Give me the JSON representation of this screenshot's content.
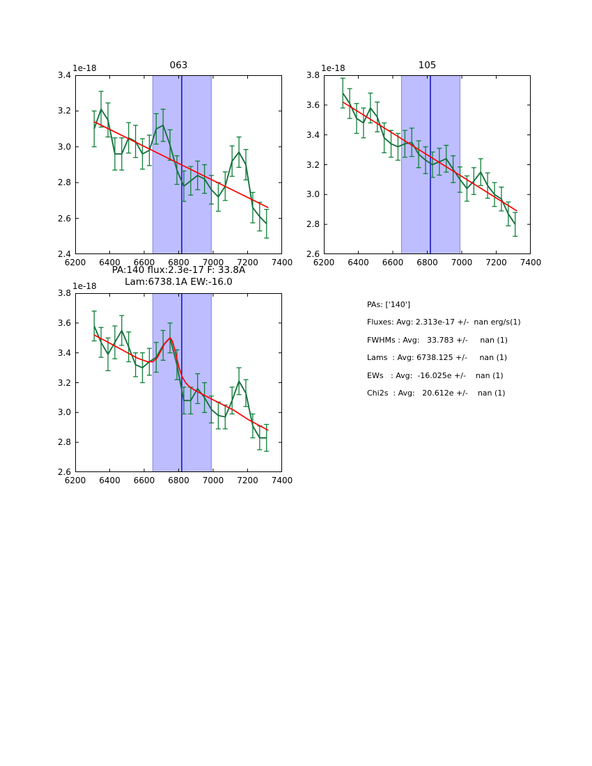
{
  "figure": {
    "background": "#ffffff"
  },
  "colors": {
    "spectrum_green": "#17713f",
    "errorbar_green": "#0e8038",
    "fit_red": "#ff0000",
    "band_fill": "rgba(0,0,255,0.26)",
    "band_edge": "rgba(64,64,208,0.55)",
    "vline_blue": "#0000bb",
    "axis_black": "#000000"
  },
  "stats": {
    "lines": [
      "PAs: ['140']",
      "Fluxes: Avg: 2.313e-17 +/-  nan erg/s(1)",
      "FWHMs : Avg:   33.783 +/-     nan (1)",
      "Lams  : Avg: 6738.125 +/-     nan (1)",
      "EWs   : Avg:  -16.025e +/-    nan (1)",
      "Chi2s  : Avg:   20.612e +/-    nan (1)"
    ]
  },
  "chart_data": [
    {
      "type": "line",
      "title": "063",
      "offset_label": "1e-18",
      "xlim": [
        6200,
        7400
      ],
      "ylim": [
        2.4,
        3.4
      ],
      "xticks": [
        6200,
        6400,
        6600,
        6800,
        7000,
        7200,
        7400
      ],
      "xtick_labels": [
        "6200",
        "6400",
        "6600",
        "6800",
        "7000",
        "7200",
        "7400"
      ],
      "yticks": [
        2.4,
        2.6,
        2.8,
        3.0,
        3.2,
        3.4
      ],
      "ytick_labels": [
        "2.4",
        "2.6",
        "2.8",
        "3.0",
        "3.2",
        "3.4"
      ],
      "band_x": [
        6650,
        6990
      ],
      "vline_x": 6818,
      "grid": false,
      "series": [
        {
          "name": "spectrum",
          "x": [
            6310,
            6350,
            6390,
            6430,
            6470,
            6510,
            6550,
            6590,
            6630,
            6670,
            6710,
            6750,
            6790,
            6830,
            6870,
            6910,
            6950,
            6990,
            7030,
            7070,
            7110,
            7150,
            7190,
            7230,
            7270,
            7310
          ],
          "y": [
            3.1,
            3.21,
            3.15,
            2.96,
            2.96,
            3.05,
            3.03,
            2.96,
            2.98,
            3.1,
            3.12,
            3.01,
            2.87,
            2.78,
            2.81,
            2.84,
            2.82,
            2.76,
            2.72,
            2.78,
            2.92,
            2.97,
            2.9,
            2.66,
            2.61,
            2.57
          ],
          "yerr": [
            0.1,
            0.1,
            0.095,
            0.09,
            0.09,
            0.085,
            0.09,
            0.085,
            0.085,
            0.085,
            0.09,
            0.085,
            0.08,
            0.085,
            0.08,
            0.08,
            0.08,
            0.08,
            0.08,
            0.08,
            0.085,
            0.085,
            0.085,
            0.085,
            0.08,
            0.08
          ]
        },
        {
          "name": "linear-fit",
          "x": [
            6310,
            7320
          ],
          "y": [
            3.14,
            2.66
          ]
        }
      ]
    },
    {
      "type": "line",
      "title": "105",
      "offset_label": "1e-18",
      "xlim": [
        6200,
        7400
      ],
      "ylim": [
        2.6,
        3.8
      ],
      "xticks": [
        6200,
        6400,
        6600,
        6800,
        7000,
        7200,
        7400
      ],
      "xtick_labels": [
        "6200",
        "6400",
        "6600",
        "6800",
        "7000",
        "7200",
        "7400"
      ],
      "yticks": [
        2.6,
        2.8,
        3.0,
        3.2,
        3.4,
        3.6,
        3.8
      ],
      "ytick_labels": [
        "2.6",
        "2.8",
        "3.0",
        "3.2",
        "3.4",
        "3.6",
        "3.8"
      ],
      "band_x": [
        6650,
        6990
      ],
      "vline_x": 6818,
      "grid": false,
      "series": [
        {
          "name": "spectrum",
          "x": [
            6310,
            6350,
            6390,
            6430,
            6470,
            6510,
            6550,
            6590,
            6630,
            6670,
            6710,
            6750,
            6790,
            6830,
            6870,
            6910,
            6950,
            6990,
            7030,
            7070,
            7110,
            7150,
            7190,
            7230,
            7270,
            7310
          ],
          "y": [
            3.68,
            3.61,
            3.51,
            3.48,
            3.58,
            3.52,
            3.38,
            3.34,
            3.32,
            3.34,
            3.35,
            3.27,
            3.23,
            3.2,
            3.22,
            3.24,
            3.17,
            3.1,
            3.04,
            3.09,
            3.15,
            3.06,
            3.0,
            2.97,
            2.87,
            2.8
          ],
          "yerr": [
            0.1,
            0.1,
            0.1,
            0.1,
            0.1,
            0.1,
            0.1,
            0.09,
            0.09,
            0.09,
            0.095,
            0.09,
            0.09,
            0.085,
            0.09,
            0.09,
            0.09,
            0.085,
            0.085,
            0.09,
            0.09,
            0.085,
            0.08,
            0.08,
            0.08,
            0.08
          ]
        },
        {
          "name": "linear-fit",
          "x": [
            6310,
            7320
          ],
          "y": [
            3.62,
            2.89
          ]
        }
      ]
    },
    {
      "type": "line",
      "title": "PA:140 flux:2.3e-17 F: 33.8A Lam:6738.1A EW:-16.0",
      "title_lines": [
        "PA:140 flux:2.3e-17 F: 33.8A",
        "Lam:6738.1A EW:-16.0"
      ],
      "offset_label": "1e-18",
      "xlim": [
        6200,
        7400
      ],
      "ylim": [
        2.6,
        3.8
      ],
      "xticks": [
        6200,
        6400,
        6600,
        6800,
        7000,
        7200,
        7400
      ],
      "xtick_labels": [
        "6200",
        "6400",
        "6600",
        "6800",
        "7000",
        "7200",
        "7400"
      ],
      "yticks": [
        2.6,
        2.8,
        3.0,
        3.2,
        3.4,
        3.6,
        3.8
      ],
      "ytick_labels": [
        "2.6",
        "2.8",
        "3.0",
        "3.2",
        "3.4",
        "3.6",
        "3.8"
      ],
      "band_x": [
        6650,
        6990
      ],
      "vline_x": 6818,
      "grid": false,
      "series": [
        {
          "name": "spectrum",
          "x": [
            6310,
            6350,
            6390,
            6430,
            6470,
            6510,
            6550,
            6590,
            6630,
            6670,
            6710,
            6750,
            6790,
            6830,
            6870,
            6910,
            6950,
            6990,
            7030,
            7070,
            7110,
            7150,
            7190,
            7230,
            7270,
            7310
          ],
          "y": [
            3.58,
            3.47,
            3.39,
            3.47,
            3.55,
            3.44,
            3.32,
            3.3,
            3.34,
            3.37,
            3.45,
            3.5,
            3.32,
            3.08,
            3.08,
            3.16,
            3.1,
            3.02,
            2.98,
            2.97,
            3.08,
            3.21,
            3.13,
            2.91,
            2.83,
            2.83
          ],
          "yerr": [
            0.1,
            0.1,
            0.11,
            0.11,
            0.1,
            0.1,
            0.08,
            0.1,
            0.09,
            0.1,
            0.1,
            0.1,
            0.1,
            0.09,
            0.09,
            0.1,
            0.1,
            0.09,
            0.09,
            0.08,
            0.09,
            0.09,
            0.09,
            0.08,
            0.08,
            0.09
          ]
        },
        {
          "name": "gaussian-fit",
          "x": [
            6310,
            6400,
            6480,
            6560,
            6620,
            6650,
            6675,
            6700,
            6720,
            6740,
            6752,
            6765,
            6780,
            6800,
            6820,
            6840,
            6865,
            6900,
            6950,
            7000,
            7060,
            7120,
            7200,
            7320
          ],
          "y": [
            3.52,
            3.465,
            3.415,
            3.365,
            3.34,
            3.34,
            3.365,
            3.42,
            3.465,
            3.49,
            3.5,
            3.475,
            3.41,
            3.31,
            3.24,
            3.2,
            3.17,
            3.145,
            3.115,
            3.085,
            3.05,
            3.015,
            2.955,
            2.88
          ]
        }
      ]
    }
  ]
}
